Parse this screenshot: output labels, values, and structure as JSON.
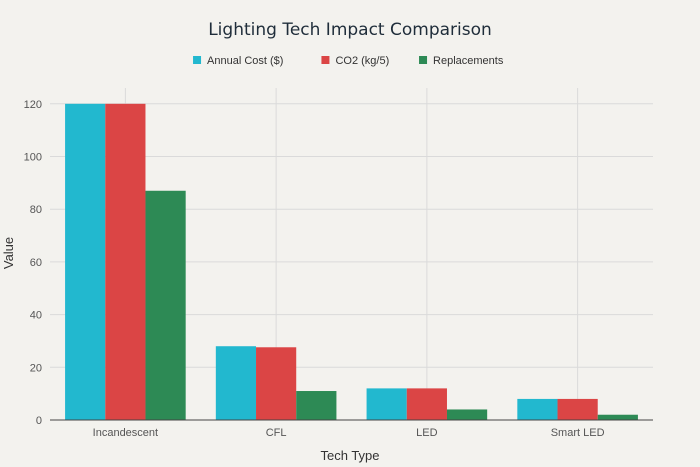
{
  "chart_data": {
    "type": "bar",
    "title": "Lighting Tech Impact Comparison",
    "xlabel": "Tech Type",
    "ylabel": "Value",
    "categories": [
      "Incandescent",
      "CFL",
      "LED",
      "Smart LED"
    ],
    "series": [
      {
        "name": "Annual Cost ($)",
        "color": "#22b8cf",
        "values": [
          120,
          28,
          12,
          8
        ]
      },
      {
        "name": "CO2 (kg/5)",
        "color": "#db4545",
        "values": [
          120,
          27.6,
          12,
          8
        ]
      },
      {
        "name": "Replacements",
        "color": "#2d8a55",
        "values": [
          87,
          11,
          4,
          2
        ]
      }
    ],
    "ylim": [
      0,
      126
    ],
    "yticks": [
      0,
      20,
      40,
      60,
      80,
      100,
      120
    ],
    "grid": true,
    "legend_position": "top-center"
  }
}
